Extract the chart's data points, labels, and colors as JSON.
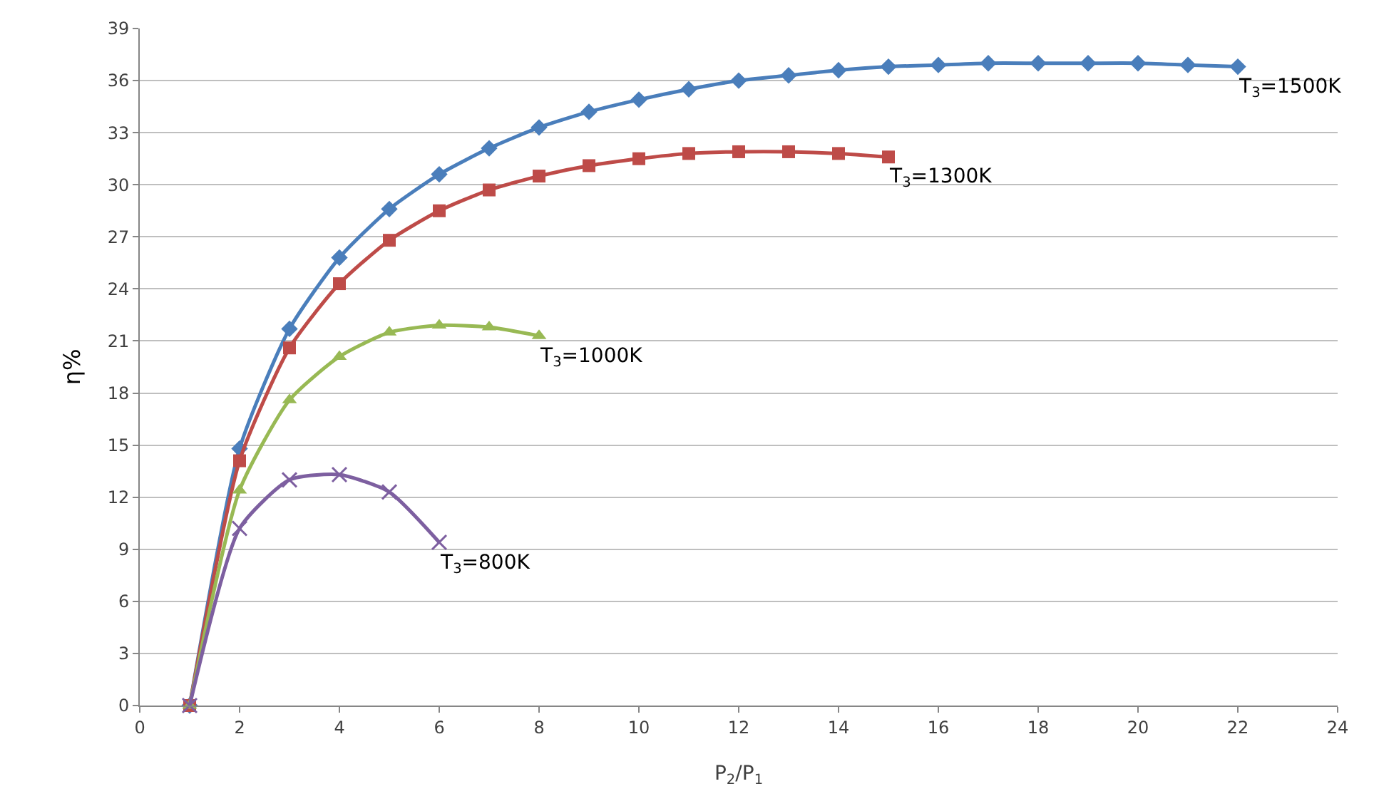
{
  "chart_data": {
    "type": "line",
    "xlabel": "P$_{2}$/P$_{1}$",
    "ylabel": "η%",
    "xlim": [
      0,
      24
    ],
    "xticks": [
      0,
      2,
      4,
      6,
      8,
      10,
      12,
      14,
      16,
      18,
      20,
      22,
      24
    ],
    "ylim": [
      0,
      39
    ],
    "yticks": [
      0,
      3,
      6,
      9,
      12,
      15,
      18,
      21,
      24,
      27,
      30,
      33,
      36,
      39
    ],
    "grid": "y",
    "legend": false,
    "line_style": "solid",
    "series": [
      {
        "name": "T$_{3}$=1500K",
        "color": "#4a7ebb",
        "marker": "diamond",
        "x": [
          1,
          2,
          3,
          4,
          5,
          6,
          7,
          8,
          9,
          10,
          11,
          12,
          13,
          14,
          15,
          16,
          17,
          18,
          19,
          20,
          21,
          22
        ],
        "values": [
          0,
          14.8,
          21.7,
          25.8,
          28.6,
          30.6,
          32.1,
          33.3,
          34.2,
          34.9,
          35.5,
          36.0,
          36.3,
          36.6,
          36.8,
          36.9,
          37.0,
          37.0,
          37.0,
          37.0,
          36.9,
          36.8
        ]
      },
      {
        "name": "T$_{3}$=1300K",
        "color": "#be4b48",
        "marker": "square",
        "x": [
          1,
          2,
          3,
          4,
          5,
          6,
          7,
          8,
          9,
          10,
          11,
          12,
          13,
          14,
          15
        ],
        "values": [
          0,
          14.1,
          20.6,
          24.3,
          26.8,
          28.5,
          29.7,
          30.5,
          31.1,
          31.5,
          31.8,
          31.9,
          31.9,
          31.8,
          31.6
        ]
      },
      {
        "name": "T$_{3}$=1000K",
        "color": "#98b954",
        "marker": "triangle",
        "x": [
          1,
          2,
          3,
          4,
          5,
          6,
          7,
          8
        ],
        "values": [
          0,
          12.4,
          17.6,
          20.1,
          21.5,
          21.9,
          21.8,
          21.3
        ]
      },
      {
        "name": "T$_{3}$=800K",
        "color": "#7d5fa0",
        "marker": "cross",
        "x": [
          1,
          2,
          3,
          4,
          5,
          6
        ],
        "values": [
          0,
          10.2,
          13.0,
          13.3,
          12.3,
          9.4
        ]
      }
    ]
  }
}
